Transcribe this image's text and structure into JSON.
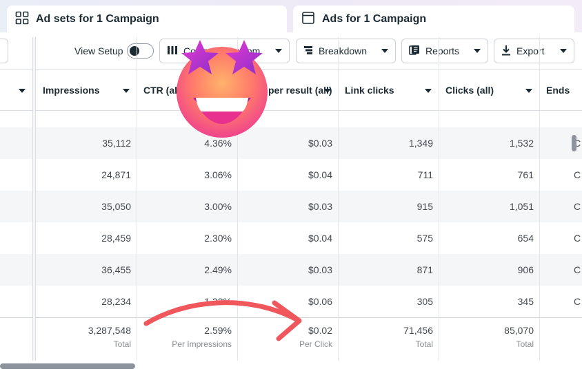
{
  "tabs": [
    {
      "label": "Ad sets for 1 Campaign",
      "icon": "grid-icon"
    },
    {
      "label": "Ads for 1 Campaign",
      "icon": "ad-window-icon"
    }
  ],
  "toolbar": {
    "view_setup_label": "View Setup",
    "view_setup_toggle": "off",
    "columns_label": "Columns: Custom",
    "breakdown_label": "Breakdown",
    "reports_label": "Reports",
    "export_label": "Export"
  },
  "table": {
    "headers": [
      "Impressions",
      "CTR (all)",
      "Cost per result (all)",
      "Link clicks",
      "Clicks (all)",
      "Ends"
    ],
    "rows": [
      {
        "impressions": "35,112",
        "ctr": "4.36%",
        "cost": "$0.03",
        "link_clicks": "1,349",
        "clicks": "1,532",
        "ends": "C"
      },
      {
        "impressions": "24,871",
        "ctr": "3.06%",
        "cost": "$0.04",
        "link_clicks": "711",
        "clicks": "761",
        "ends": "C"
      },
      {
        "impressions": "35,050",
        "ctr": "3.00%",
        "cost": "$0.03",
        "link_clicks": "915",
        "clicks": "1,051",
        "ends": "C"
      },
      {
        "impressions": "28,459",
        "ctr": "2.30%",
        "cost": "$0.04",
        "link_clicks": "575",
        "clicks": "654",
        "ends": "C"
      },
      {
        "impressions": "36,455",
        "ctr": "2.49%",
        "cost": "$0.03",
        "link_clicks": "871",
        "clicks": "906",
        "ends": "C"
      },
      {
        "impressions": "28,234",
        "ctr": "1.22%",
        "cost": "$0.06",
        "link_clicks": "305",
        "clicks": "345",
        "ends": "C"
      }
    ],
    "totals": {
      "impressions": {
        "value": "3,287,548",
        "sub": "Total"
      },
      "ctr": {
        "value": "2.59%",
        "sub": "Per Impressions"
      },
      "cost": {
        "value": "$0.02",
        "sub": "Per Click"
      },
      "link_clicks": {
        "value": "71,456",
        "sub": "Total"
      },
      "clicks": {
        "value": "85,070",
        "sub": "Total"
      }
    }
  },
  "overlays": {
    "emoji": "star-struck-emoji",
    "arrow": "red-curved-arrow",
    "arrow_color": "#f0575d"
  },
  "colors": {
    "text": "#1c2b33",
    "muted": "#444950",
    "border": "#dadde1",
    "row_alt": "#f5f6f7"
  }
}
